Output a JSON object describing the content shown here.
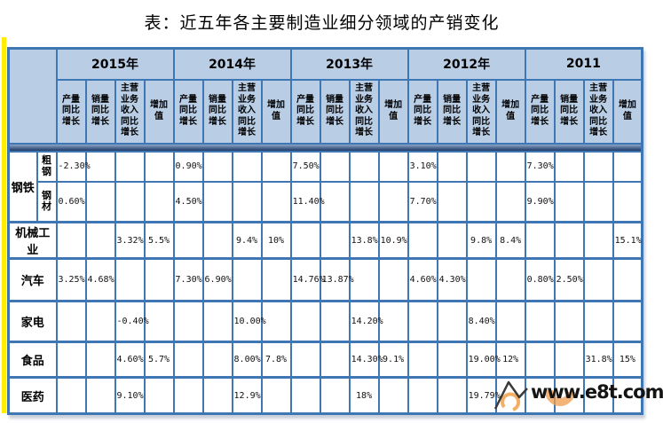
{
  "title": "表：近五年各主要制造业细分领域的产销变化",
  "watermark": {
    "text": "www.e8t.com"
  },
  "colors": {
    "header_bg": "#b9cde5",
    "grid_line": "#3f77b5",
    "band_dark": "#1d3a66",
    "left_stripe": "#ffee00",
    "watermark_orange": "#ef9b4e"
  },
  "chart_data": {
    "type": "table",
    "title": "表：近五年各主要制造业细分领域的产销变化",
    "year_groups": [
      "2015年",
      "2014年",
      "2013年",
      "2012年",
      "2011"
    ],
    "metric_columns": [
      "产量同比增长",
      "销量同比增长",
      "主营业务收入同比增长",
      "增加值"
    ],
    "rows": [
      {
        "group": "钢铁",
        "sub": "粗钢",
        "values": [
          "-2.30%",
          "",
          "",
          "",
          "0.90%",
          "",
          "",
          "",
          "7.50%",
          "",
          "",
          "",
          "3.10%",
          "",
          "",
          "",
          "7.30%",
          "",
          "",
          ""
        ]
      },
      {
        "group": "钢铁",
        "sub": "钢材",
        "values": [
          "0.60%",
          "",
          "",
          "",
          "4.50%",
          "",
          "",
          "",
          "11.40%",
          "",
          "",
          "",
          "7.70%",
          "",
          "",
          "",
          "9.90%",
          "",
          "",
          ""
        ]
      },
      {
        "group": "机械工业",
        "sub": "",
        "values": [
          "",
          "",
          "3.32%",
          "5.5%",
          "",
          "",
          "9.4%",
          "10%",
          "",
          "",
          "13.8%",
          "10.9%",
          "",
          "",
          "9.8%",
          "8.4%",
          "",
          "",
          "",
          "15.1%"
        ]
      },
      {
        "group": "汽车",
        "sub": "",
        "values": [
          "3.25%",
          "4.68%",
          "",
          "",
          "7.30%",
          "6.90%",
          "",
          "",
          "14.76%",
          "13.87%",
          "",
          "",
          "4.60%",
          "4.30%",
          "",
          "",
          "0.80%",
          "2.50%",
          "",
          ""
        ]
      },
      {
        "group": "家电",
        "sub": "",
        "values": [
          "",
          "",
          "-0.40%",
          "",
          "",
          "",
          "10.00%",
          "",
          "",
          "",
          "14.20%",
          "",
          "",
          "",
          "8.40%",
          "",
          "",
          "",
          "",
          ""
        ]
      },
      {
        "group": "食品",
        "sub": "",
        "values": [
          "",
          "",
          "4.60%",
          "5.7%",
          "",
          "",
          "8.00%",
          "7.8%",
          "",
          "",
          "14.30%",
          "9.1%",
          "",
          "",
          "19.00%",
          "12%",
          "",
          "",
          "31.8%",
          "15%"
        ]
      },
      {
        "group": "医药",
        "sub": "",
        "values": [
          "",
          "",
          "9.10%",
          "",
          "",
          "",
          "12.9%",
          "",
          "",
          "",
          "18%",
          "",
          "",
          "",
          "19.79%",
          "",
          "",
          "",
          "",
          ""
        ]
      }
    ]
  }
}
